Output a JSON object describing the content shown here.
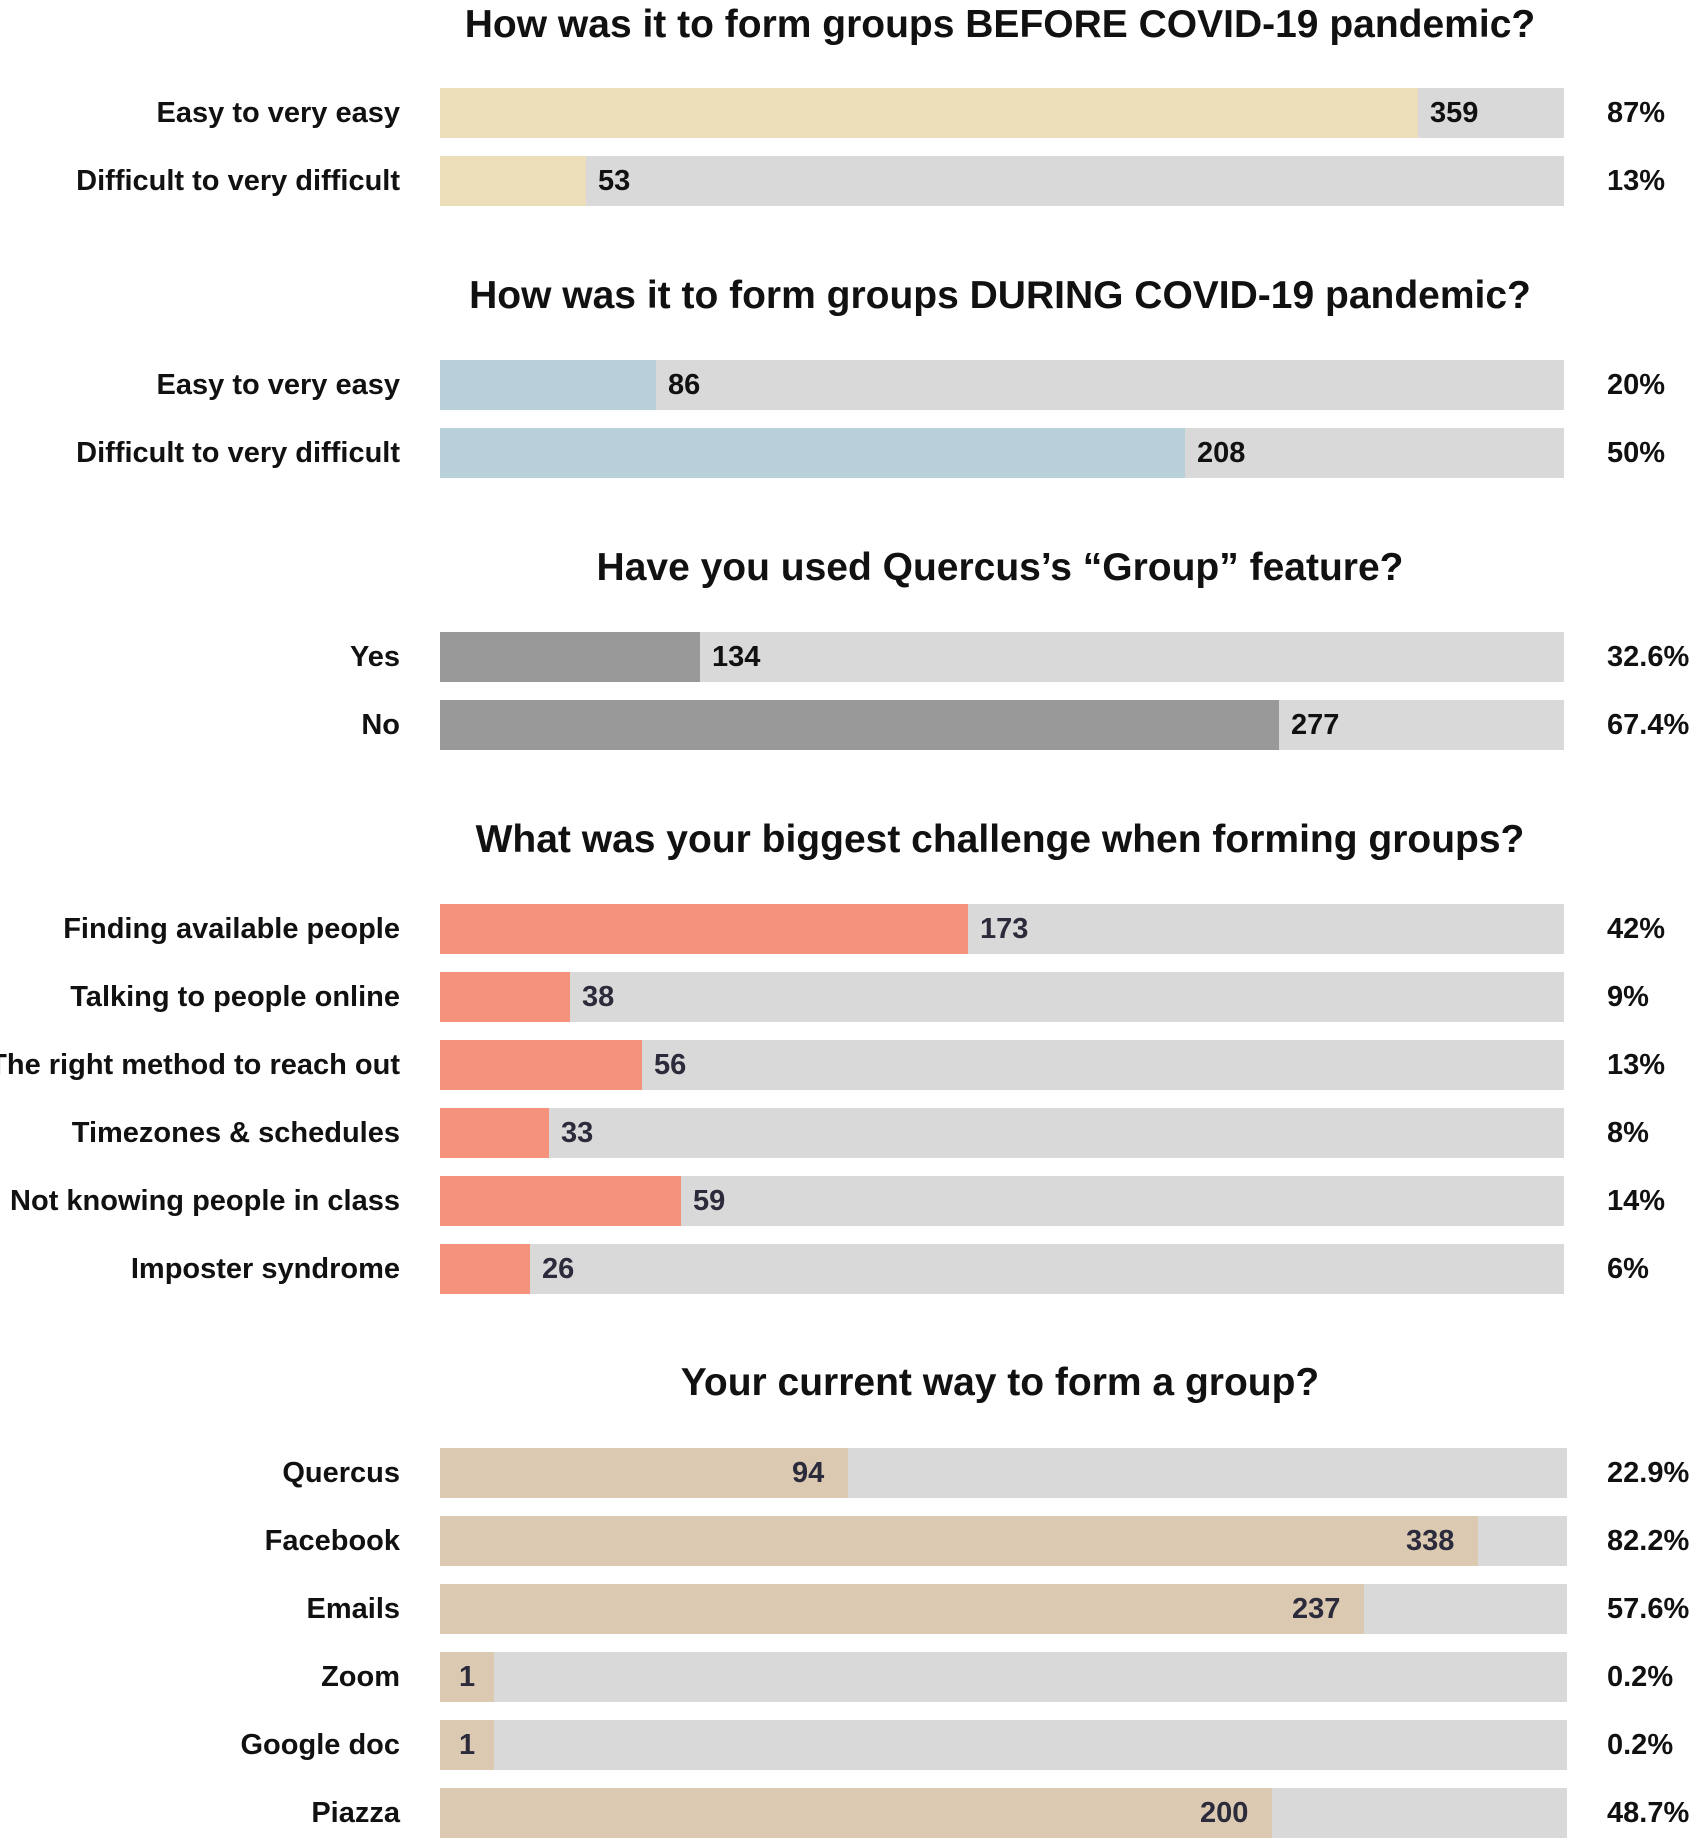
{
  "chart_data": [
    {
      "type": "bar",
      "orientation": "horizontal",
      "title": "How was it to form groups BEFORE COVID-19 pandemic?",
      "categories": [
        "Easy to very easy",
        "Difficult to very difficult"
      ],
      "values": [
        359,
        53
      ],
      "percent_labels": [
        "87%",
        "13%"
      ],
      "fill_fractions": [
        0.87,
        0.13
      ],
      "color": "#ecdeb8",
      "value_color": "#111111",
      "value_position": "outside"
    },
    {
      "type": "bar",
      "orientation": "horizontal",
      "title": "How was it to form groups DURING COVID-19 pandemic?",
      "categories": [
        "Easy to very easy",
        "Difficult to very difficult"
      ],
      "values": [
        86,
        208
      ],
      "percent_labels": [
        "20%",
        "50%"
      ],
      "fill_fractions": [
        0.192,
        0.663
      ],
      "color": "#b7d0da",
      "value_color": "#111111",
      "value_position": "outside"
    },
    {
      "type": "bar",
      "orientation": "horizontal",
      "title": "Have you used Quercus’s “Group” feature?",
      "categories": [
        "Yes",
        "No"
      ],
      "values": [
        134,
        277
      ],
      "percent_labels": [
        "32.6%",
        "67.4%"
      ],
      "fill_fractions": [
        0.231,
        0.746
      ],
      "color": "#999999",
      "value_color": "#111111",
      "value_position": "outside"
    },
    {
      "type": "bar",
      "orientation": "horizontal",
      "title": "What was your biggest challenge when forming groups?",
      "categories": [
        "Finding available people",
        "Talking to people online",
        "The right method to reach out",
        "Timezones & schedules",
        "Not knowing people in class",
        "Imposter syndrome"
      ],
      "values": [
        173,
        38,
        56,
        33,
        59,
        26
      ],
      "percent_labels": [
        "42%",
        "9%",
        "13%",
        "8%",
        "14%",
        "6%"
      ],
      "fill_fractions": [
        0.47,
        0.116,
        0.18,
        0.097,
        0.214,
        0.08
      ],
      "color": "#f4927b",
      "value_color": "#2b2b3b",
      "value_position": "outside"
    },
    {
      "type": "bar",
      "orientation": "horizontal",
      "title": "Your current way to form a group?",
      "categories": [
        "Quercus",
        "Facebook",
        "Emails",
        "Zoom",
        "Google doc",
        "Piazza"
      ],
      "values": [
        94,
        338,
        237,
        1,
        1,
        200
      ],
      "percent_labels": [
        "22.9%",
        "82.2%",
        "57.6%",
        "0.2%",
        "0.2%",
        "48.7%"
      ],
      "fill_fractions": [
        0.362,
        0.921,
        0.82,
        0.048,
        0.048,
        0.738
      ],
      "color": "#dcc9b2",
      "value_color": "#2b2b3b",
      "value_position": "inside"
    }
  ]
}
